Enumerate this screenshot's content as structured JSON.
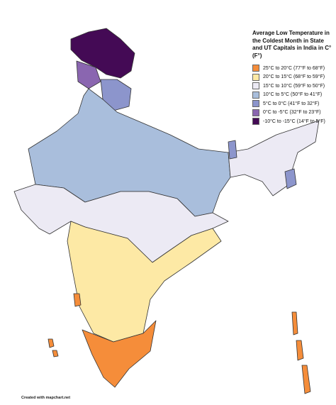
{
  "title": "Average Low Temperature in the Coldest Month in State and UT Capitals in India in C° (F°)",
  "legend": [
    {
      "label": "25°C to 20°C (77°F to 68°F)",
      "color": "#f58d3a"
    },
    {
      "label": "20°C to 15°C (68°F to 59°F)",
      "color": "#fde9a5"
    },
    {
      "label": "15°C to 10°C (59°F to 50°F)",
      "color": "#eceaf4"
    },
    {
      "label": "10°C to 5°C (50°F to 41°F)",
      "color": "#a9bedc"
    },
    {
      "label": "5°C to 0°C (41°F to 32°F)",
      "color": "#8c95cc"
    },
    {
      "label": "0°C to -5°C (32°F to 23°F)",
      "color": "#8a66b0"
    },
    {
      "label": "-10°C to -15°C (14°F to 5°F)",
      "color": "#440a55"
    }
  ],
  "credit": "Created with mapchart.net"
}
